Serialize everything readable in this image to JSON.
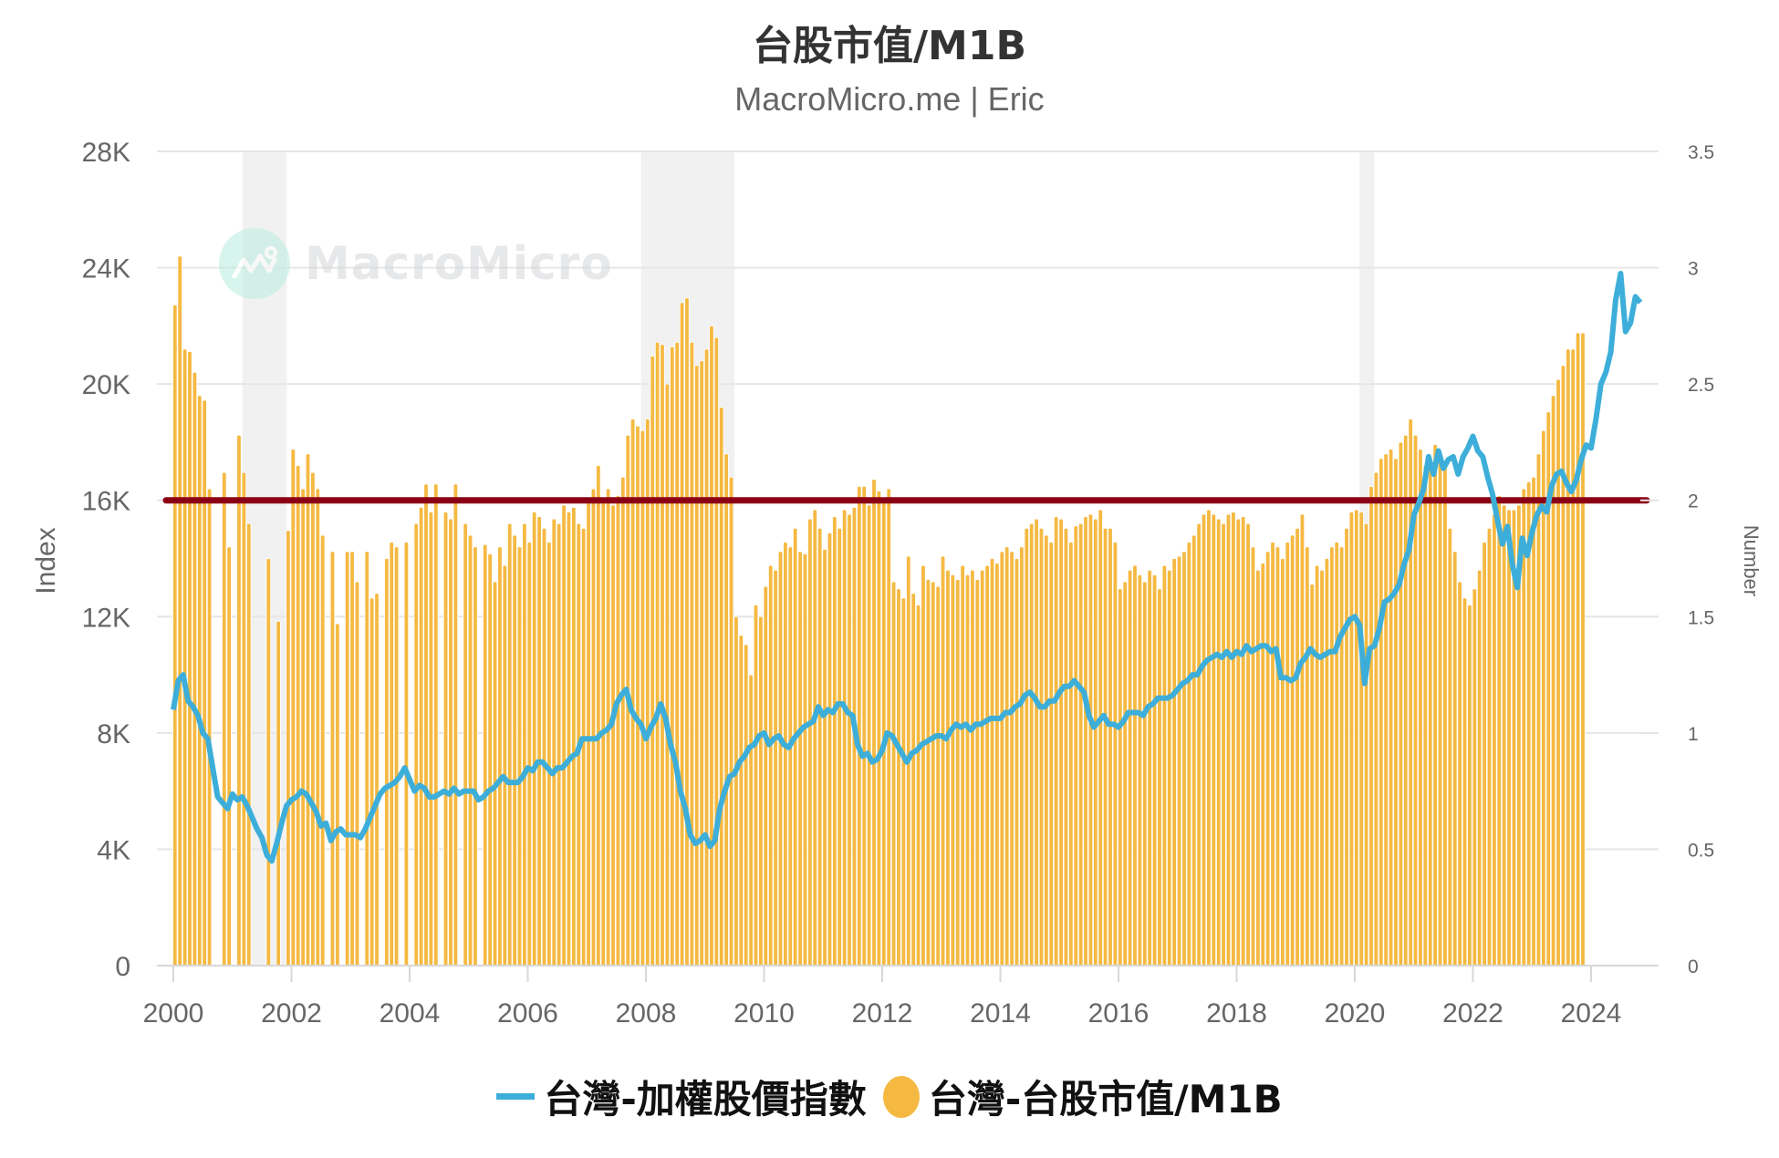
{
  "header": {
    "title": "台股市值/M1B",
    "subtitle": "MacroMicro.me | Eric"
  },
  "watermark": {
    "text": "MacroMicro",
    "icon": "macromicro-logo-icon"
  },
  "legend": [
    {
      "label": "台灣-加權股價指數",
      "type": "line",
      "color": "#3daed9"
    },
    {
      "label": "台灣-台股市值/M1B",
      "type": "bar",
      "color": "#f5b942"
    }
  ],
  "axes": {
    "left_title": "Index",
    "right_title": "Number",
    "left_ticks": [
      "0",
      "4K",
      "8K",
      "12K",
      "16K",
      "20K",
      "24K",
      "28K"
    ],
    "right_ticks": [
      "0",
      "0.5",
      "1",
      "1.5",
      "2",
      "2.5",
      "3",
      "3.5"
    ],
    "x_ticks": [
      "2000",
      "2002",
      "2004",
      "2006",
      "2008",
      "2010",
      "2012",
      "2014",
      "2016",
      "2018",
      "2020",
      "2022",
      "2024"
    ]
  },
  "colors": {
    "bar": "#f5b942",
    "line": "#3daed9",
    "threshold": "#8b0015",
    "recession": "#f1f1f1",
    "grid": "#e6e6e6"
  },
  "chart_data": {
    "type": "bar+line",
    "title": "台股市值/M1B",
    "subtitle": "MacroMicro.me | Eric",
    "xlabel": "",
    "ylabel_left": "Index",
    "ylabel_right": "Number",
    "ylim_left": [
      0,
      28000
    ],
    "ylim_right": [
      0,
      3.5
    ],
    "x_range": [
      "2000-01",
      "2024-12"
    ],
    "grid": true,
    "legend_position": "bottom",
    "threshold_line": {
      "axis": "right",
      "value": 2.0,
      "color": "#8b0015"
    },
    "recession_bands": [
      {
        "start": 2001.17,
        "end": 2001.92
      },
      {
        "start": 2007.92,
        "end": 2009.5
      },
      {
        "start": 2020.08,
        "end": 2020.33
      }
    ],
    "series": [
      {
        "name": "台灣-台股市值/M1B",
        "type": "bar",
        "axis": "right",
        "frequency": "monthly",
        "start": "2000-01",
        "values": [
          2.84,
          3.05,
          2.65,
          2.64,
          2.55,
          2.45,
          2.43,
          2.05,
          0,
          0,
          2.12,
          1.8,
          0,
          2.28,
          2.12,
          1.9,
          0,
          0,
          0,
          1.75,
          0,
          1.48,
          0,
          1.87,
          2.22,
          2.15,
          2.05,
          2.2,
          2.12,
          2.05,
          1.85,
          0,
          1.78,
          1.47,
          0,
          1.78,
          1.78,
          1.65,
          0,
          1.78,
          1.58,
          1.6,
          0,
          1.75,
          1.82,
          1.8,
          0,
          1.82,
          0,
          1.9,
          1.97,
          2.07,
          1.95,
          2.07,
          0,
          1.95,
          1.92,
          2.07,
          0,
          1.9,
          1.85,
          1.8,
          0,
          1.81,
          1.77,
          1.65,
          1.8,
          1.72,
          1.9,
          1.85,
          1.8,
          1.9,
          1.82,
          1.95,
          1.93,
          1.88,
          1.82,
          1.92,
          1.9,
          1.98,
          1.95,
          1.97,
          1.9,
          1.88,
          2.0,
          2.05,
          2.15,
          2.0,
          2.05,
          1.98,
          2.02,
          2.1,
          2.28,
          2.35,
          2.32,
          2.3,
          2.35,
          2.62,
          2.68,
          2.67,
          2.5,
          2.66,
          2.68,
          2.85,
          2.87,
          2.68,
          2.58,
          2.6,
          2.65,
          2.75,
          2.7,
          2.4,
          2.2,
          2.1,
          1.5,
          1.42,
          1.38,
          1.25,
          1.55,
          1.5,
          1.63,
          1.72,
          1.7,
          1.78,
          1.82,
          1.8,
          1.88,
          1.78,
          1.77,
          1.92,
          1.96,
          1.88,
          1.79,
          1.86,
          1.93,
          1.88,
          1.96,
          1.94,
          1.97,
          2.06,
          2.06,
          1.98,
          2.09,
          2.04,
          2.0,
          2.05,
          1.65,
          1.62,
          1.58,
          1.76,
          1.6,
          1.55,
          1.72,
          1.66,
          1.65,
          1.63,
          1.76,
          1.7,
          1.68,
          1.66,
          1.72,
          1.68,
          1.7,
          1.66,
          1.7,
          1.72,
          1.75,
          1.73,
          1.78,
          1.8,
          1.78,
          1.75,
          1.8,
          1.88,
          1.9,
          1.92,
          1.88,
          1.85,
          1.82,
          1.93,
          1.92,
          1.88,
          1.82,
          1.89,
          1.9,
          1.93,
          1.94,
          1.92,
          1.96,
          1.88,
          1.88,
          1.82,
          1.62,
          1.65,
          1.7,
          1.72,
          1.68,
          1.65,
          1.7,
          1.68,
          1.62,
          1.72,
          1.7,
          1.75,
          1.76,
          1.78,
          1.82,
          1.85,
          1.9,
          1.94,
          1.96,
          1.94,
          1.92,
          1.9,
          1.94,
          1.95,
          1.92,
          1.93,
          1.9,
          1.8,
          1.7,
          1.73,
          1.78,
          1.82,
          1.8,
          1.75,
          1.82,
          1.85,
          1.88,
          1.94,
          1.8,
          1.64,
          1.72,
          1.7,
          1.75,
          1.8,
          1.82,
          1.8,
          1.88,
          1.95,
          1.96,
          1.95,
          1.9,
          2.06,
          2.12,
          2.18,
          2.2,
          2.22,
          2.18,
          2.25,
          2.28,
          2.35,
          2.28,
          2.22,
          2.15,
          2.18,
          2.24,
          2.18,
          2.15,
          1.88,
          1.78,
          1.65,
          1.58,
          1.55,
          1.62,
          1.7,
          1.82,
          1.88,
          1.94,
          2.02,
          1.98,
          1.96,
          1.96,
          1.98,
          2.05,
          2.08,
          2.1,
          2.2,
          2.3,
          2.38,
          2.45,
          2.52,
          2.58,
          2.65,
          2.65,
          2.72,
          2.72
        ]
      },
      {
        "name": "台灣-加權股價指數",
        "type": "line",
        "axis": "left",
        "frequency": "monthly",
        "start": "2000-01",
        "values": [
          8800,
          9800,
          10000,
          9100,
          8900,
          8600,
          8000,
          7800,
          6800,
          5800,
          5600,
          5400,
          5900,
          5700,
          5800,
          5500,
          5100,
          4700,
          4400,
          3800,
          3600,
          4200,
          4900,
          5500,
          5700,
          5800,
          6000,
          5900,
          5600,
          5300,
          4800,
          4900,
          4300,
          4600,
          4700,
          4500,
          4500,
          4500,
          4400,
          4700,
          5100,
          5500,
          5900,
          6100,
          6200,
          6300,
          6500,
          6800,
          6400,
          6000,
          6200,
          6100,
          5800,
          5800,
          5900,
          6000,
          5900,
          6100,
          5900,
          6000,
          6000,
          6000,
          5700,
          5800,
          6000,
          6100,
          6300,
          6500,
          6300,
          6300,
          6300,
          6500,
          6800,
          6700,
          7000,
          7000,
          6800,
          6600,
          6800,
          6800,
          7000,
          7200,
          7300,
          7800,
          7800,
          7800,
          7800,
          8000,
          8100,
          8300,
          9000,
          9300,
          9500,
          8800,
          8500,
          8300,
          7800,
          8200,
          8500,
          9000,
          8500,
          7600,
          7000,
          6000,
          5400,
          4500,
          4200,
          4300,
          4500,
          4100,
          4300,
          5400,
          6000,
          6500,
          6600,
          7000,
          7200,
          7500,
          7600,
          7900,
          8000,
          7600,
          7800,
          7900,
          7600,
          7500,
          7800,
          8000,
          8200,
          8300,
          8400,
          8900,
          8600,
          8800,
          8700,
          9000,
          9000,
          8700,
          8600,
          7600,
          7200,
          7300,
          7000,
          7100,
          7400,
          8000,
          7900,
          7600,
          7300,
          7000,
          7300,
          7400,
          7600,
          7700,
          7800,
          7900,
          7900,
          7800,
          8100,
          8300,
          8200,
          8300,
          8100,
          8300,
          8300,
          8400,
          8500,
          8500,
          8500,
          8700,
          8700,
          8900,
          9000,
          9300,
          9400,
          9200,
          8900,
          8900,
          9100,
          9100,
          9400,
          9600,
          9600,
          9800,
          9600,
          9400,
          8600,
          8200,
          8400,
          8600,
          8300,
          8300,
          8200,
          8400,
          8700,
          8700,
          8700,
          8600,
          8900,
          9000,
          9200,
          9200,
          9200,
          9300,
          9500,
          9700,
          9800,
          10000,
          10000,
          10300,
          10500,
          10600,
          10700,
          10600,
          10800,
          10600,
          10800,
          10700,
          11000,
          10800,
          10900,
          11000,
          11000,
          10800,
          10900,
          9900,
          9900,
          9800,
          9900,
          10400,
          10600,
          10900,
          10700,
          10600,
          10700,
          10800,
          10800,
          11300,
          11600,
          11900,
          12000,
          11700,
          9700,
          10900,
          11000,
          11600,
          12500,
          12600,
          12800,
          13100,
          13800,
          14300,
          15500,
          15900,
          16400,
          17500,
          16900,
          17700,
          17100,
          17400,
          17500,
          16900,
          17500,
          17800,
          18200,
          17700,
          17500,
          16800,
          16200,
          15300,
          14500,
          15100,
          13800,
          13000,
          14700,
          14100,
          14900,
          15500,
          15800,
          15600,
          16500,
          16900,
          17000,
          16600,
          16300,
          16700,
          17400,
          17900,
          17800,
          18800,
          20000,
          20400,
          21100,
          22900,
          23800,
          21800,
          22100,
          23000,
          22800
        ]
      },
      {
        "name": "Threshold 2.0",
        "type": "line",
        "axis": "right",
        "values": [
          2.0,
          2.0
        ]
      }
    ]
  }
}
